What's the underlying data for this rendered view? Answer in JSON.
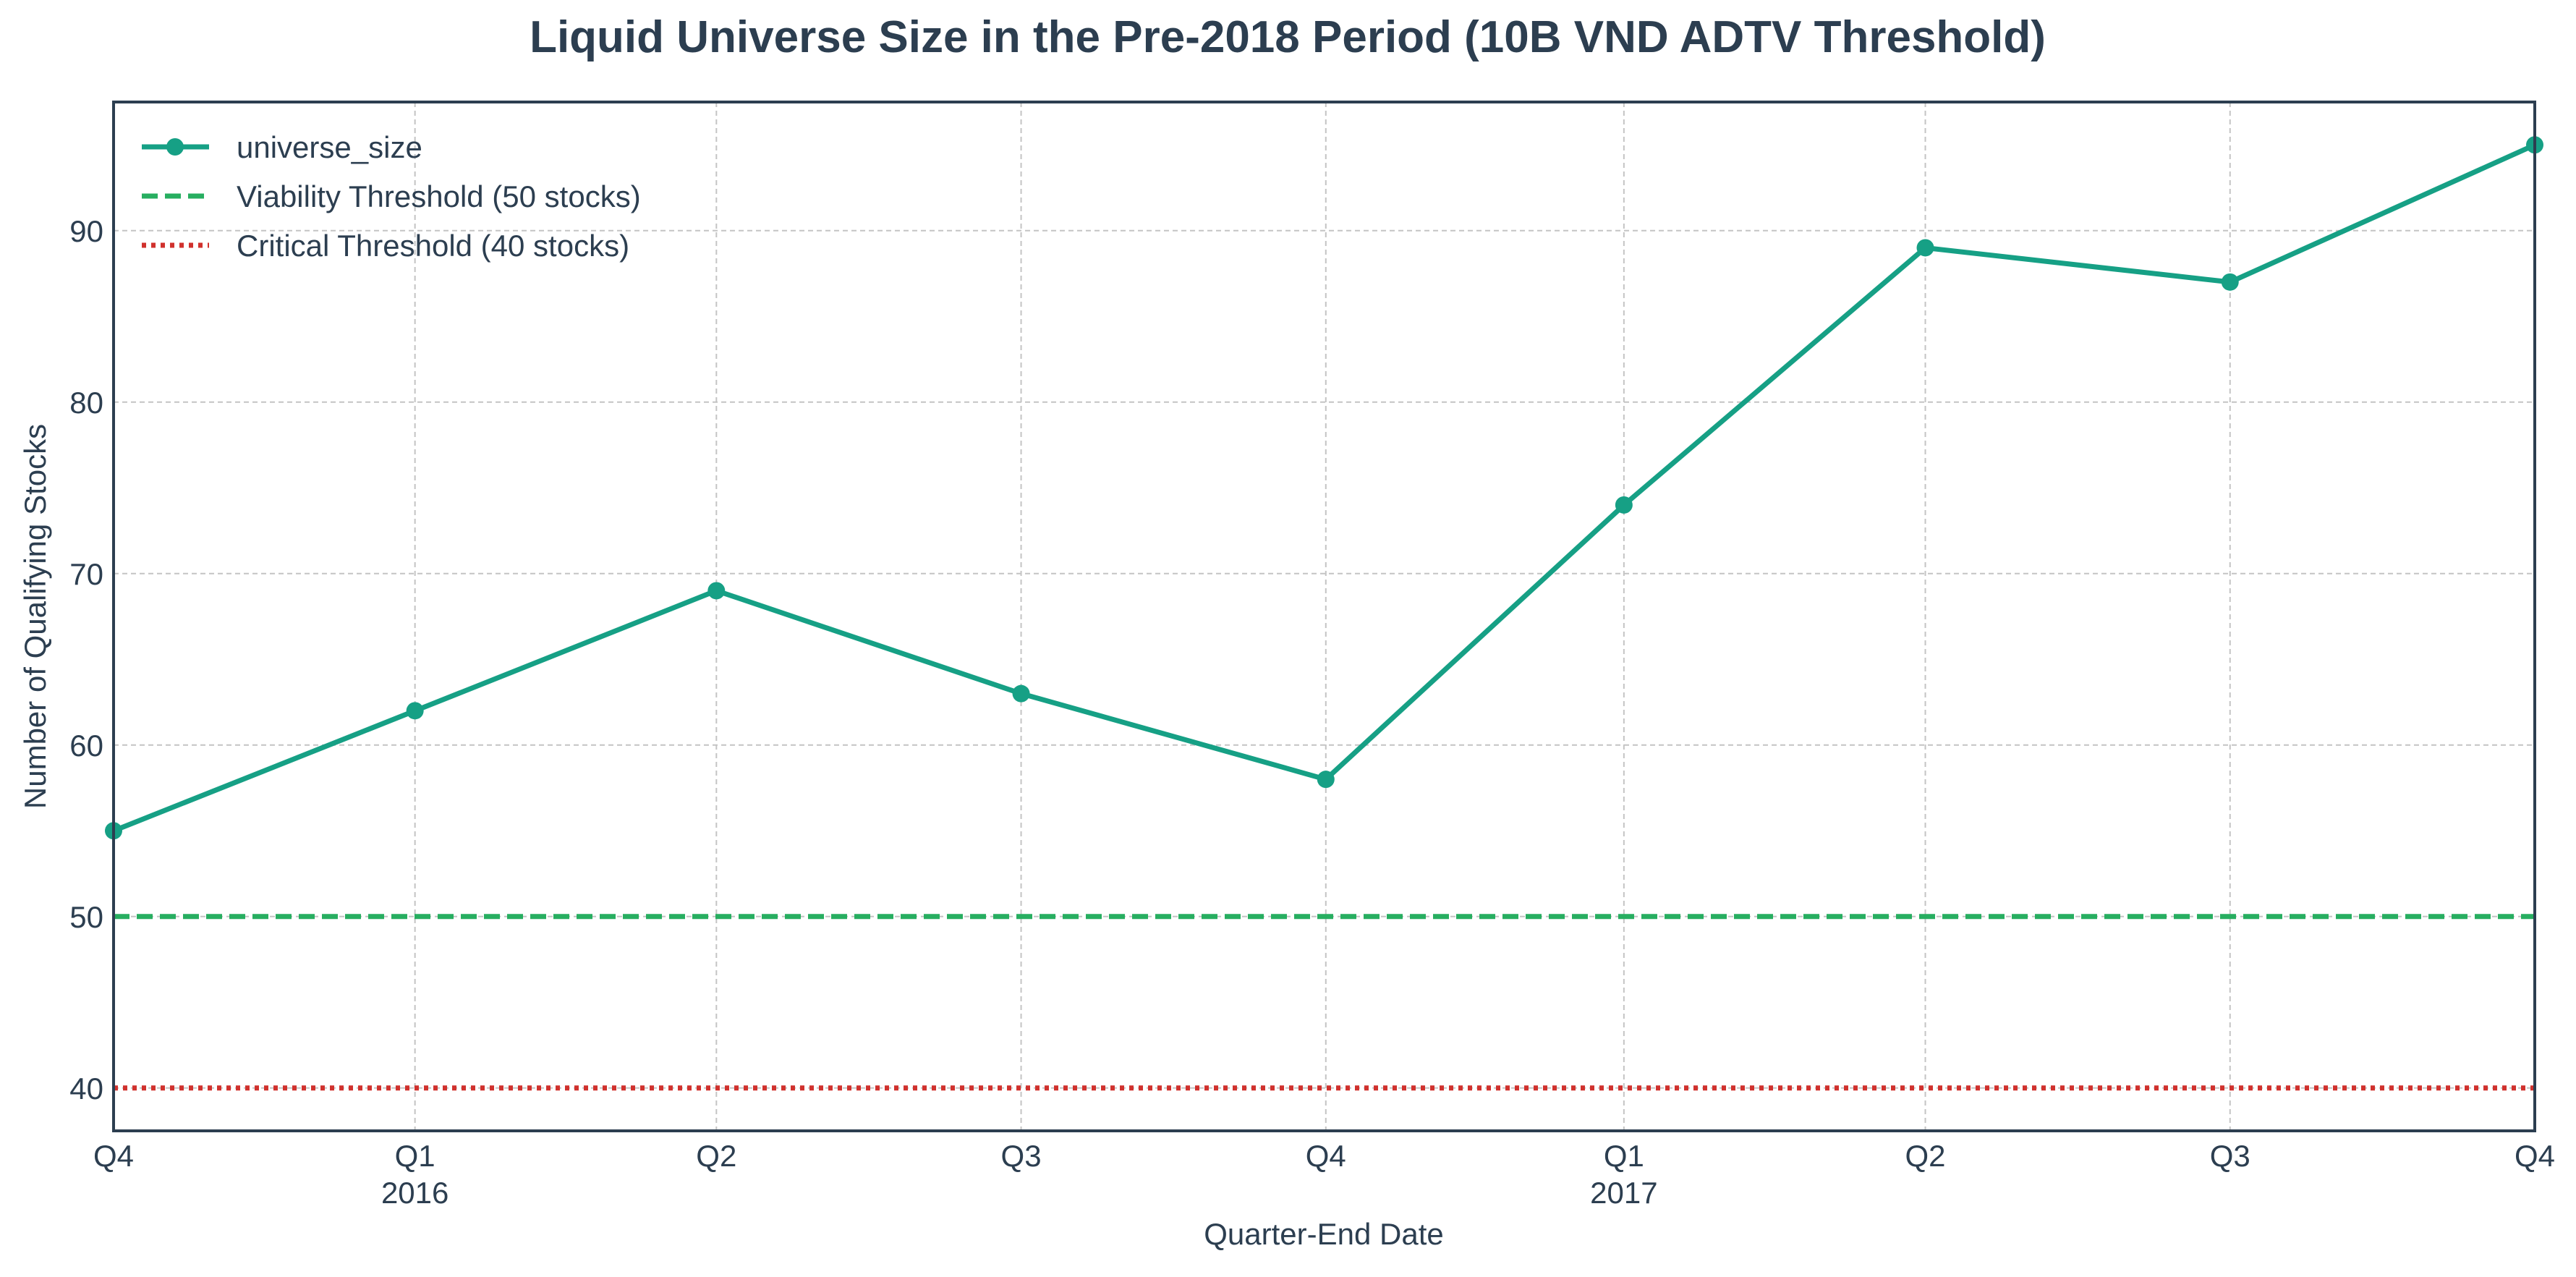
{
  "chart_data": {
    "type": "line",
    "title": "Liquid Universe Size in the Pre-2018 Period (10B VND ADTV Threshold)",
    "xlabel": "Quarter-End Date",
    "ylabel": "Number of Qualifying Stocks",
    "x": [
      "2015-12-31",
      "2016-03-31",
      "2016-06-30",
      "2016-09-30",
      "2016-12-31",
      "2017-03-31",
      "2017-06-30",
      "2017-09-30",
      "2017-12-31"
    ],
    "x_tick_labels": [
      "Q4",
      "Q1",
      "Q2",
      "Q3",
      "Q4",
      "Q1",
      "Q2",
      "Q3",
      "Q4"
    ],
    "x_year_labels": [
      "",
      "2016",
      "",
      "",
      "",
      "2017",
      "",
      "",
      ""
    ],
    "series": [
      {
        "name": "universe_size",
        "values": [
          55,
          62,
          69,
          63,
          58,
          74,
          89,
          87,
          95
        ],
        "color": "#16a085",
        "style": "solid",
        "marker": "circle"
      }
    ],
    "reference_lines": [
      {
        "name": "Viability Threshold (50 stocks)",
        "y": 50,
        "color": "#27ae60",
        "style": "dashed"
      },
      {
        "name": "Critical Threshold (40 stocks)",
        "y": 40,
        "color": "#d0312d",
        "style": "dotted"
      }
    ],
    "ylim": [
      37.5,
      97.5
    ],
    "y_ticks": [
      40,
      50,
      60,
      70,
      80,
      90
    ],
    "grid": true,
    "legend_position": "top-left"
  }
}
